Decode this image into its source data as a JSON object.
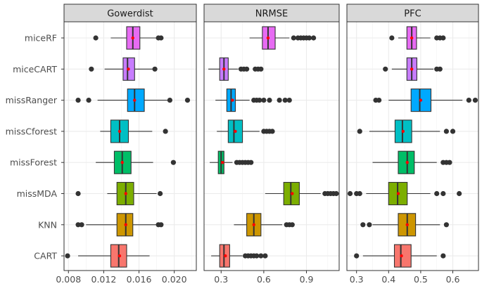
{
  "chart_data": {
    "type": "boxplot",
    "methods": [
      "miceRF",
      "miceCART",
      "missRanger",
      "missCforest",
      "missForest",
      "missMDA",
      "KNN",
      "CART"
    ],
    "colors": {
      "miceRF": "#E76BF3",
      "miceCART": "#C77CFF",
      "missRanger": "#00A9FF",
      "missCforest": "#00BFC4",
      "missForest": "#00BE67",
      "missMDA": "#7CAE00",
      "KNN": "#CD9600",
      "CART": "#F8766D"
    },
    "mean_marker_color": "#FF0000",
    "panels": [
      {
        "title": "Gowerdist",
        "xlim": [
          0.0075,
          0.0225
        ],
        "ticks": [
          0.008,
          0.012,
          0.016,
          0.02
        ],
        "tick_labels": [
          "0.008",
          "0.012",
          "0.016",
          "0.020"
        ],
        "boxes": {
          "miceRF": {
            "whisker_low": 0.0128,
            "q1": 0.0146,
            "median": 0.0153,
            "q3": 0.0161,
            "whisker_high": 0.0182,
            "mean": 0.0153,
            "outliers": [
              0.0111,
              0.0182,
              0.0185
            ]
          },
          "miceCART": {
            "whisker_low": 0.0121,
            "q1": 0.0142,
            "median": 0.0147,
            "q3": 0.0155,
            "whisker_high": 0.0178,
            "mean": 0.0148,
            "outliers": [
              0.0106,
              0.0178
            ]
          },
          "missRanger": {
            "whisker_low": 0.0113,
            "q1": 0.0147,
            "median": 0.0155,
            "q3": 0.0166,
            "whisker_high": 0.0195,
            "mean": 0.0155,
            "outliers": [
              0.0091,
              0.0103,
              0.0195,
              0.0215
            ]
          },
          "missCforest": {
            "whisker_low": 0.0116,
            "q1": 0.0128,
            "median": 0.0138,
            "q3": 0.0148,
            "whisker_high": 0.0175,
            "mean": 0.0138,
            "outliers": [
              0.019
            ]
          },
          "missForest": {
            "whisker_low": 0.0111,
            "q1": 0.0132,
            "median": 0.0141,
            "q3": 0.0151,
            "whisker_high": 0.0176,
            "mean": 0.0141,
            "outliers": [
              0.0199
            ]
          },
          "missMDA": {
            "whisker_low": 0.0124,
            "q1": 0.0135,
            "median": 0.0145,
            "q3": 0.0154,
            "whisker_high": 0.018,
            "mean": 0.0145,
            "outliers": [
              0.0091,
              0.0184
            ]
          },
          "KNN": {
            "whisker_low": 0.01,
            "q1": 0.0135,
            "median": 0.0145,
            "q3": 0.0153,
            "whisker_high": 0.018,
            "mean": 0.0145,
            "outliers": [
              0.0091,
              0.0095,
              0.0182,
              0.0185
            ]
          },
          "CART": {
            "whisker_low": 0.0091,
            "q1": 0.0128,
            "median": 0.0137,
            "q3": 0.0146,
            "whisker_high": 0.0172,
            "mean": 0.0138,
            "outliers": [
              0.0079
            ]
          }
        }
      },
      {
        "title": "NRMSE",
        "xlim": [
          0.18,
          1.13
        ],
        "ticks": [
          0.3,
          0.6,
          0.9
        ],
        "tick_labels": [
          "0.3",
          "0.6",
          "0.9"
        ],
        "boxes": {
          "miceRF": {
            "whisker_low": 0.5,
            "q1": 0.59,
            "median": 0.63,
            "q3": 0.68,
            "whisker_high": 0.78,
            "mean": 0.63,
            "outliers": [
              0.81,
              0.84,
              0.86,
              0.88,
              0.9,
              0.92,
              0.95
            ]
          },
          "miceCART": {
            "whisker_low": 0.21,
            "q1": 0.29,
            "median": 0.32,
            "q3": 0.35,
            "whisker_high": 0.42,
            "mean": 0.32,
            "outliers": [
              0.44,
              0.46,
              0.48,
              0.54,
              0.56,
              0.58
            ]
          },
          "missRanger": {
            "whisker_low": 0.26,
            "q1": 0.34,
            "median": 0.37,
            "q3": 0.4,
            "whisker_high": 0.5,
            "mean": 0.38,
            "outliers": [
              0.53,
              0.55,
              0.57,
              0.6,
              0.64,
              0.71,
              0.75,
              0.78
            ]
          },
          "missCforest": {
            "whisker_low": 0.27,
            "q1": 0.35,
            "median": 0.39,
            "q3": 0.45,
            "whisker_high": 0.57,
            "mean": 0.4,
            "outliers": [
              0.6,
              0.62,
              0.64,
              0.66
            ]
          },
          "missForest": {
            "whisker_low": 0.22,
            "q1": 0.28,
            "median": 0.3,
            "q3": 0.32,
            "whisker_high": 0.38,
            "mean": 0.31,
            "outliers": [
              0.41,
              0.43,
              0.45,
              0.47,
              0.49,
              0.51
            ]
          },
          "missMDA": {
            "whisker_low": 0.61,
            "q1": 0.74,
            "median": 0.79,
            "q3": 0.85,
            "whisker_high": 1.0,
            "mean": 0.8,
            "outliers": [
              1.03,
              1.05,
              1.07,
              1.09,
              1.11
            ]
          },
          "KNN": {
            "whisker_low": 0.39,
            "q1": 0.48,
            "median": 0.53,
            "q3": 0.58,
            "whisker_high": 0.73,
            "mean": 0.53,
            "outliers": [
              0.76,
              0.78,
              0.8
            ]
          },
          "CART": {
            "whisker_low": 0.23,
            "q1": 0.29,
            "median": 0.32,
            "q3": 0.36,
            "whisker_high": 0.45,
            "mean": 0.33,
            "outliers": [
              0.47,
              0.49,
              0.51,
              0.53,
              0.55,
              0.58,
              0.61
            ]
          }
        }
      },
      {
        "title": "PFC",
        "xlim": [
          0.27,
          0.68
        ],
        "ticks": [
          0.3,
          0.4,
          0.5,
          0.6
        ],
        "tick_labels": [
          "0.3",
          "0.4",
          "0.5",
          "0.6"
        ],
        "boxes": {
          "miceRF": {
            "whisker_low": 0.43,
            "q1": 0.457,
            "median": 0.472,
            "q3": 0.487,
            "whisker_high": 0.53,
            "mean": 0.472,
            "outliers": [
              0.41,
              0.55,
              0.56,
              0.57
            ]
          },
          "miceCART": {
            "whisker_low": 0.41,
            "q1": 0.457,
            "median": 0.472,
            "q3": 0.488,
            "whisker_high": 0.54,
            "mean": 0.472,
            "outliers": [
              0.39,
              0.55,
              0.56
            ]
          },
          "missRanger": {
            "whisker_low": 0.4,
            "q1": 0.47,
            "median": 0.497,
            "q3": 0.532,
            "whisker_high": 0.63,
            "mean": 0.5,
            "outliers": [
              0.36,
              0.37,
              0.65,
              0.67
            ]
          },
          "missCforest": {
            "whisker_low": 0.34,
            "q1": 0.42,
            "median": 0.443,
            "q3": 0.472,
            "whisker_high": 0.56,
            "mean": 0.445,
            "outliers": [
              0.31,
              0.58,
              0.6
            ]
          },
          "missForest": {
            "whisker_low": 0.35,
            "q1": 0.43,
            "median": 0.458,
            "q3": 0.48,
            "whisker_high": 0.55,
            "mean": 0.458,
            "outliers": [
              0.57,
              0.58,
              0.59
            ]
          },
          "missMDA": {
            "whisker_low": 0.33,
            "q1": 0.4,
            "median": 0.428,
            "q3": 0.458,
            "whisker_high": 0.53,
            "mean": 0.43,
            "outliers": [
              0.28,
              0.3,
              0.31,
              0.55,
              0.57,
              0.62
            ]
          },
          "KNN": {
            "whisker_low": 0.35,
            "q1": 0.43,
            "median": 0.458,
            "q3": 0.484,
            "whisker_high": 0.56,
            "mean": 0.458,
            "outliers": [
              0.32,
              0.34,
              0.58
            ]
          },
          "CART": {
            "whisker_low": 0.32,
            "q1": 0.418,
            "median": 0.438,
            "q3": 0.47,
            "whisker_high": 0.55,
            "mean": 0.44,
            "outliers": [
              0.3,
              0.57
            ]
          }
        }
      }
    ]
  }
}
